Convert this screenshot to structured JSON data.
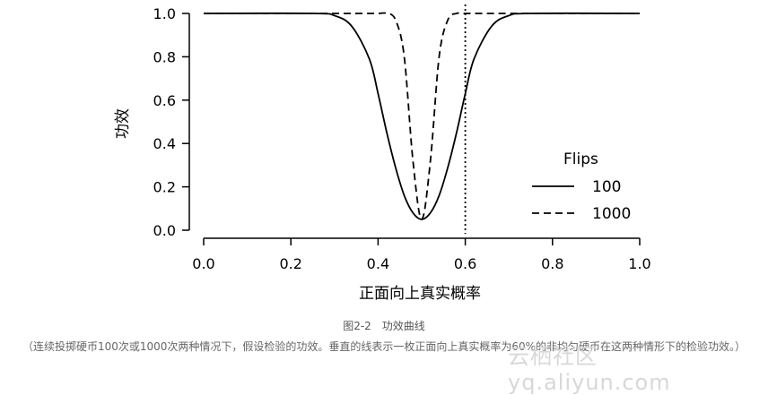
{
  "chart_data": {
    "type": "line",
    "ylabel": "功效",
    "xlabel": "正面向上真实概率",
    "xlim": [
      0.0,
      1.0
    ],
    "ylim": [
      0.0,
      1.0
    ],
    "x_ticks": [
      "0.0",
      "0.2",
      "0.4",
      "0.6",
      "0.8",
      "1.0"
    ],
    "y_ticks": [
      "0.0",
      "0.2",
      "0.4",
      "0.6",
      "0.8",
      "1.0"
    ],
    "legend_title": "Flips",
    "legend_position": "right-center",
    "grid": false,
    "reference_line": {
      "x": 0.6,
      "style": "dotted",
      "orientation": "vertical"
    },
    "x": [
      0.0,
      0.25,
      0.3,
      0.34,
      0.38,
      0.4,
      0.42,
      0.44,
      0.46,
      0.48,
      0.5,
      0.52,
      0.54,
      0.56,
      0.58,
      0.6,
      0.62,
      0.66,
      0.7,
      0.75,
      1.0
    ],
    "series": [
      {
        "name": "100",
        "style": "solid",
        "values": [
          1.0,
          1.0,
          0.99,
          0.94,
          0.79,
          0.63,
          0.45,
          0.29,
          0.16,
          0.08,
          0.05,
          0.08,
          0.16,
          0.29,
          0.45,
          0.63,
          0.79,
          0.94,
          0.99,
          1.0,
          1.0
        ]
      },
      {
        "name": "1000",
        "style": "dashed",
        "values": [
          1.0,
          1.0,
          1.0,
          1.0,
          1.0,
          1.0,
          1.0,
          0.97,
          0.8,
          0.32,
          0.05,
          0.32,
          0.8,
          0.97,
          1.0,
          1.0,
          1.0,
          1.0,
          1.0,
          1.0,
          1.0
        ]
      }
    ]
  },
  "caption": {
    "title": "图2-2　功效曲线",
    "note": "（连续投掷硬币100次或1000次两种情况下，假设检验的功效。垂直的线表示一枚正面向上真实概率为60%的非均匀硬币在这两种情形下的检验功效。）"
  },
  "watermark": "云栖社区 yq.aliyun.com"
}
